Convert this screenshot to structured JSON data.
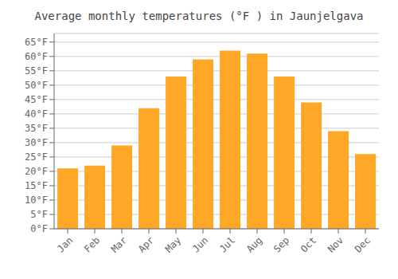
{
  "chart_data": {
    "type": "bar",
    "title": "Average monthly temperatures (°F ) in Jaunjelgava",
    "categories": [
      "Jan",
      "Feb",
      "Mar",
      "Apr",
      "May",
      "Jun",
      "Jul",
      "Aug",
      "Sep",
      "Oct",
      "Nov",
      "Dec"
    ],
    "values": [
      21,
      22,
      29,
      42,
      53,
      59,
      62,
      61,
      53,
      44,
      34,
      26
    ],
    "color": "#FFA726",
    "ylim": [
      0,
      68
    ],
    "yticks": [
      {
        "value": 0,
        "label": "0°F"
      },
      {
        "value": 5,
        "label": "5°F"
      },
      {
        "value": 10,
        "label": "10°F"
      },
      {
        "value": 15,
        "label": "15°F"
      },
      {
        "value": 20,
        "label": "20°F"
      },
      {
        "value": 25,
        "label": "25°F"
      },
      {
        "value": 30,
        "label": "30°F"
      },
      {
        "value": 35,
        "label": "35°F"
      },
      {
        "value": 40,
        "label": "40°F"
      },
      {
        "value": 45,
        "label": "45°F"
      },
      {
        "value": 50,
        "label": "50°F"
      },
      {
        "value": 55,
        "label": "55°F"
      },
      {
        "value": 60,
        "label": "60°F"
      },
      {
        "value": 65,
        "label": "65°F"
      }
    ],
    "grid": true
  }
}
